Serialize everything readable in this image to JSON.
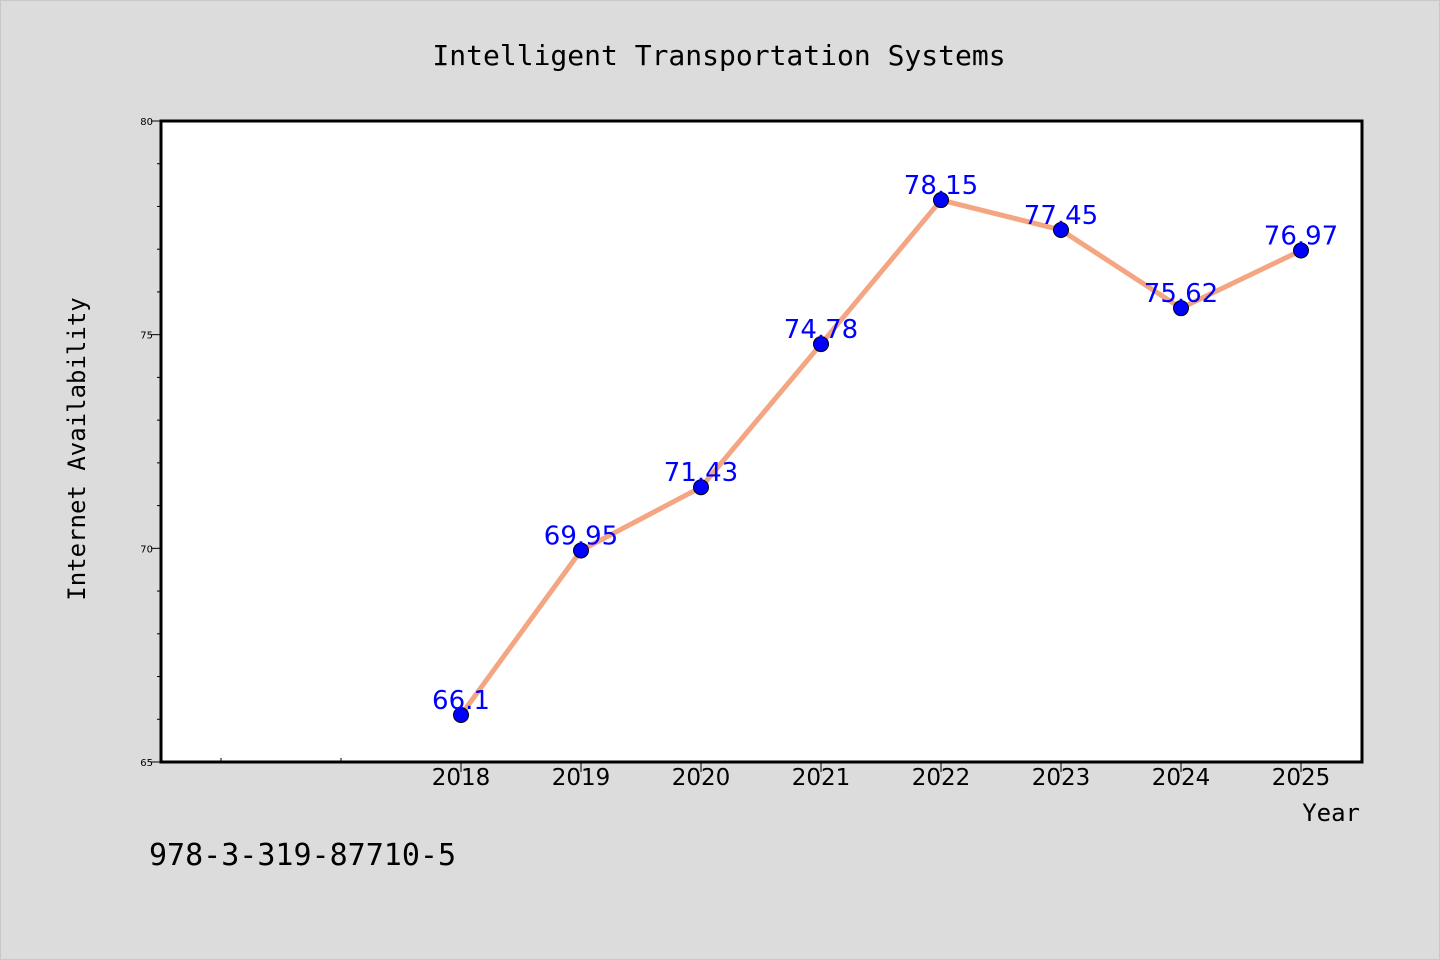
{
  "chart_data": {
    "type": "line",
    "title": "Intelligent Transportation Systems",
    "xlabel": "Year",
    "ylabel": "Internet Availability",
    "categories": [
      "2018",
      "2019",
      "2020",
      "2021",
      "2022",
      "2023",
      "2024",
      "2025"
    ],
    "series": [
      {
        "values": [
          66.1,
          69.95,
          71.43,
          74.78,
          78.15,
          77.45,
          75.62,
          76.97
        ],
        "labels": [
          "66.1",
          "69.95",
          "71.43",
          "74.78",
          "78.15",
          "77.45",
          "75.62",
          "76.97"
        ],
        "line_color": "#f4a582",
        "marker_color": "#0000ff"
      }
    ],
    "ylim": [
      65,
      80
    ],
    "yticks": [
      "65",
      "70",
      "75",
      "80"
    ],
    "grid": false,
    "legend": "none",
    "background_color": "#dcdcdc",
    "plot_background_color": "#ffffff",
    "label_color": "#0000ff"
  },
  "footer": {
    "isbn": "978-3-319-87710-5"
  }
}
